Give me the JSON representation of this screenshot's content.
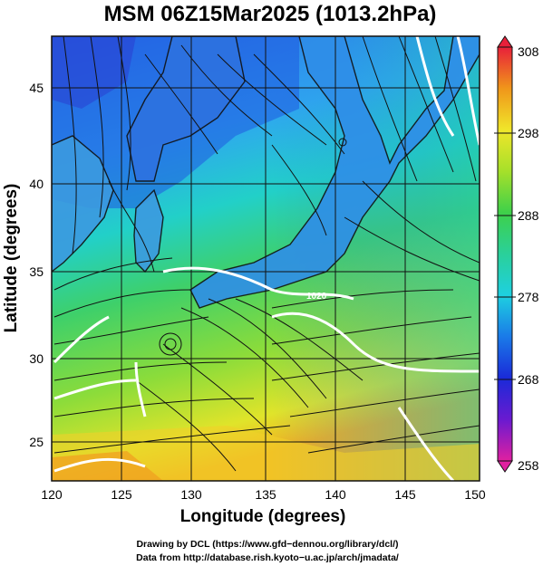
{
  "title": "MSM 06Z15Mar2025 (1013.2hPa)",
  "xlabel": "Longitude (degrees)",
  "ylabel": "Latitude  (degrees)",
  "x_ticks": [
    "120",
    "125",
    "130",
    "135",
    "140",
    "145",
    "150"
  ],
  "y_ticks": [
    "25",
    "30",
    "35",
    "40",
    "45"
  ],
  "colorbar_ticks": [
    "308",
    "298",
    "288",
    "278",
    "268",
    "258"
  ],
  "contour_label": "1020",
  "credits": [
    "Drawing by DCL (https://www.gfd−dennou.org/library/dcl/)",
    "Data from http://database.rish.kyoto−u.ac.jp/arch/jmadata/"
  ],
  "colors": {
    "cold": "#1a3fd8",
    "cool": "#1ec8e0",
    "mild": "#3ecf4a",
    "warm": "#e6e62a",
    "hot": "#f07a1a",
    "extreme": "#e0203a"
  }
}
